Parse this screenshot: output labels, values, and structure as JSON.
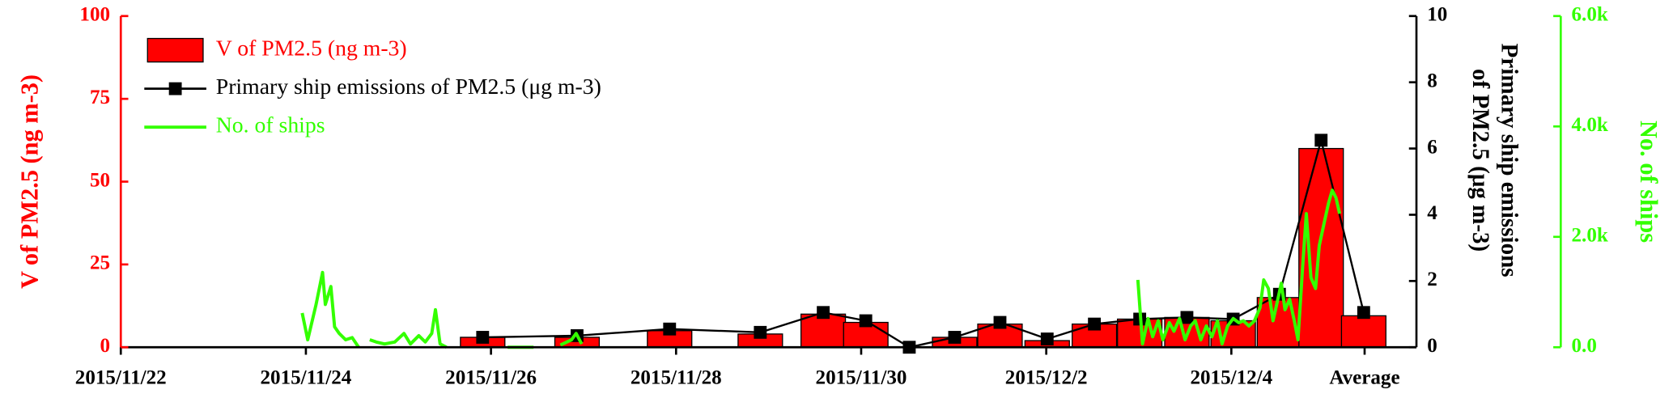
{
  "chart_data": {
    "type": "bar",
    "xlim": [
      0,
      14
    ],
    "xticks": [
      {
        "value": 0,
        "label": "2015/11/22"
      },
      {
        "value": 2,
        "label": "2015/11/24"
      },
      {
        "value": 4,
        "label": "2015/11/26"
      },
      {
        "value": 6,
        "label": "2015/11/28"
      },
      {
        "value": 8,
        "label": "2015/11/30"
      },
      {
        "value": 10,
        "label": "2015/12/2"
      },
      {
        "value": 12,
        "label": "2015/12/4"
      },
      {
        "value": 13.44,
        "label": "Average"
      }
    ],
    "ylabel": "V of PM2.5 (ng m-3)",
    "ylim": [
      0,
      100
    ],
    "yticks": [
      0,
      25,
      50,
      75,
      100
    ],
    "y2label": [
      "Primary ship emissions",
      "of PM2.5 (μg m-3)"
    ],
    "y2lim": [
      0,
      10
    ],
    "y2ticks": [
      0,
      2,
      4,
      6,
      8,
      10
    ],
    "y3label": "No. of ships",
    "y3lim": [
      0,
      6000
    ],
    "y3ticks": [
      {
        "value": 0,
        "label": "0.0"
      },
      {
        "value": 2000,
        "label": "2.0k"
      },
      {
        "value": 4000,
        "label": "4.0k"
      },
      {
        "value": 6000,
        "label": "6.0k"
      }
    ],
    "legend": "upper left",
    "x": [
      3.91,
      4.93,
      5.93,
      6.91,
      7.59,
      8.05,
      8.52,
      9.01,
      9.5,
      10.01,
      10.52,
      11.01,
      11.52,
      12.02,
      12.52,
      12.97,
      13.43
    ],
    "series": [
      {
        "name": "V of PM2.5 (ng m-3)",
        "type": "bar",
        "axis": "y",
        "color": "#ff0000",
        "values": [
          3,
          3,
          5,
          4,
          10,
          7.5,
          0,
          3,
          7,
          2,
          7,
          8.5,
          9,
          8,
          15,
          60,
          9.5
        ]
      },
      {
        "name": "Primary ship emissions of PM2.5 (μg m-3)",
        "type": "line",
        "marker": "square",
        "axis": "y2",
        "color": "#000000",
        "values": [
          0.3,
          0.35,
          0.55,
          0.45,
          1.05,
          0.8,
          0,
          0.3,
          0.75,
          0.25,
          0.7,
          0.85,
          0.9,
          0.85,
          1.6,
          6.25,
          1.05
        ]
      },
      {
        "name": "No. of ships",
        "type": "line",
        "axis": "y3",
        "color": "#33ff00",
        "x": [
          1.96,
          2.02,
          2.11,
          2.18,
          2.21,
          2.27,
          2.31,
          2.36,
          2.43,
          2.5,
          2.57,
          2.64,
          2.69,
          2.76,
          2.85,
          2.96,
          3.06,
          3.13,
          3.22,
          3.29,
          3.36,
          3.4,
          3.45,
          3.52,
          3.77,
          4.18,
          4.46,
          4.58,
          4.75,
          4.87,
          4.92,
          4.98,
          5.62,
          10.99,
          11.04,
          11.1,
          11.15,
          11.21,
          11.26,
          11.33,
          11.38,
          11.44,
          11.5,
          11.56,
          11.61,
          11.67,
          11.73,
          11.79,
          11.85,
          11.9,
          11.96,
          12.02,
          12.08,
          12.13,
          12.19,
          12.25,
          12.31,
          12.35,
          12.4,
          12.45,
          12.49,
          12.54,
          12.58,
          12.63,
          12.68,
          12.72,
          12.77,
          12.81,
          12.86,
          12.91,
          12.95,
          13,
          13.05,
          13.09,
          13.13,
          13.17
        ],
        "values": [
          620,
          135,
          775,
          1355,
          775,
          1100,
          370,
          250,
          135,
          175,
          0,
          null,
          135,
          95,
          60,
          95,
          250,
          60,
          210,
          95,
          250,
          680,
          60,
          0,
          null,
          0,
          0,
          null,
          40,
          135,
          250,
          60,
          null,
          1220,
          60,
          520,
          190,
          480,
          135,
          445,
          290,
          520,
          135,
          385,
          480,
          135,
          385,
          190,
          480,
          60,
          385,
          520,
          445,
          480,
          385,
          480,
          715,
          1220,
          1065,
          480,
          775,
          1160,
          680,
          870,
          480,
          135,
          1450,
          2420,
          1260,
          1065,
          1840,
          2230,
          2610,
          2845,
          2710,
          2420
        ]
      }
    ]
  }
}
